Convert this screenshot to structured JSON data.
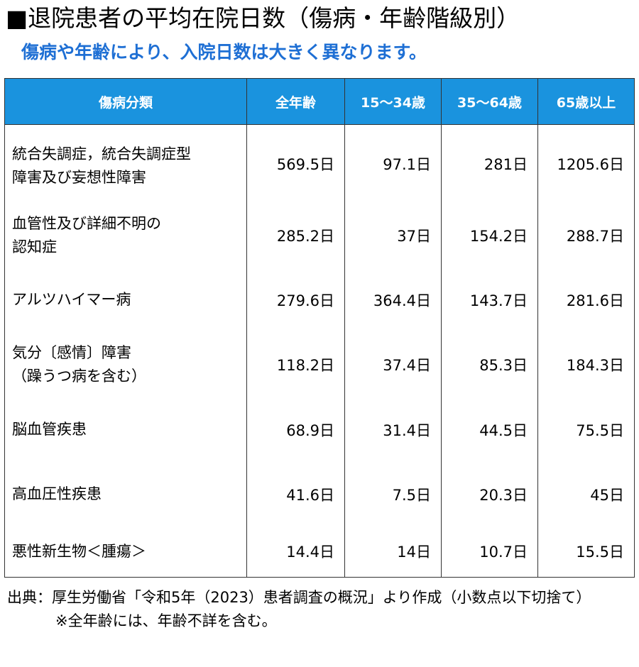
{
  "title": "■退院患者の平均在院日数（傷病・年齢階級別）",
  "subtitle": "傷病や年齢により、入院日数は大きく異なります。",
  "table": {
    "headers": [
      "傷病分類",
      "全年齢",
      "15～34歳",
      "35～64歳",
      "65歳以上"
    ],
    "rows": [
      {
        "disease_line1": "統合失調症，統合失調症型",
        "disease_line2": "障害及び妄想性障害",
        "values": [
          "569.5日",
          "97.1日",
          "281日",
          "1205.6日"
        ]
      },
      {
        "disease_line1": "血管性及び詳細不明の",
        "disease_line2": "認知症",
        "values": [
          "285.2日",
          "37日",
          "154.2日",
          "288.7日"
        ]
      },
      {
        "disease_line1": "アルツハイマー病",
        "disease_line2": "",
        "values": [
          "279.6日",
          "364.4日",
          "143.7日",
          "281.6日"
        ]
      },
      {
        "disease_line1": "気分〔感情〕障害",
        "disease_line2": "（躁うつ病を含む）",
        "values": [
          "118.2日",
          "37.4日",
          "85.3日",
          "184.3日"
        ]
      },
      {
        "disease_line1": "脳血管疾患",
        "disease_line2": "",
        "values": [
          "68.9日",
          "31.4日",
          "44.5日",
          "75.5日"
        ]
      },
      {
        "disease_line1": "高血圧性疾患",
        "disease_line2": "",
        "values": [
          "41.6日",
          "7.5日",
          "20.3日",
          "45日"
        ]
      },
      {
        "disease_line1": "悪性新生物＜腫瘍＞",
        "disease_line2": "",
        "values": [
          "14.4日",
          "14日",
          "10.7日",
          "15.5日"
        ]
      }
    ]
  },
  "notes": {
    "source": "出典：厚生労働省「令和5年（2023）患者調査の概況」より作成（小数点以下切捨て）",
    "extra": "※全年齢には、年齢不詳を含む。"
  },
  "colors": {
    "header_bg": "#1a93de",
    "subtitle": "#1e6fd4",
    "border": "#333333"
  }
}
